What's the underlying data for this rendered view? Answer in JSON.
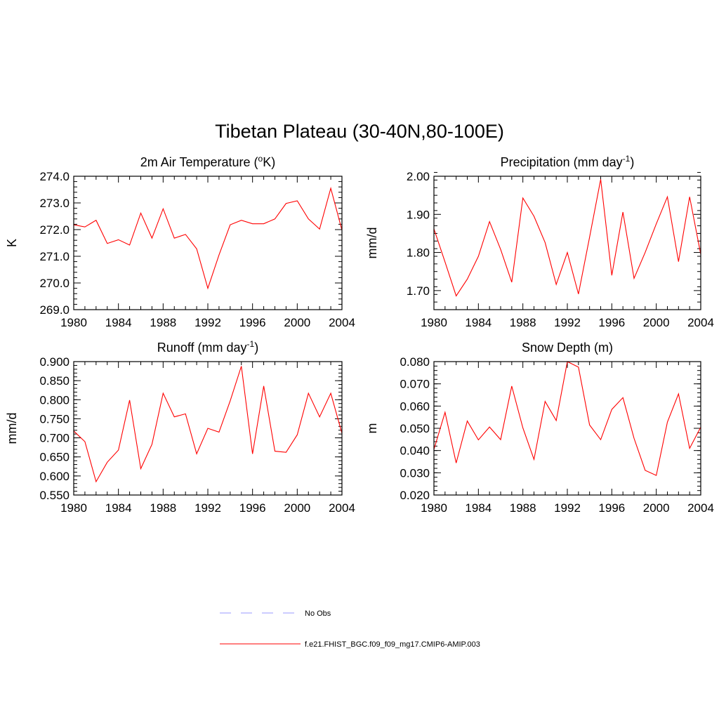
{
  "figure": {
    "title": "Tibetan Plateau (30-40N,80-100E)"
  },
  "chart_data": [
    {
      "type": "line",
      "title": "2m Air Temperature (",
      "title_sup": "o",
      "title_suffix": "K)",
      "ylabel": "K",
      "xlim": [
        1980,
        2004
      ],
      "ylim": [
        269.0,
        274.0
      ],
      "xticks": [
        1980,
        1984,
        1988,
        1992,
        1996,
        2000,
        2004
      ],
      "yticks": [
        "269.0",
        "270.0",
        "271.0",
        "272.0",
        "273.0",
        "274.0"
      ],
      "ytick_values": [
        269.0,
        270.0,
        271.0,
        272.0,
        273.0,
        274.0
      ],
      "yminor": 0.2,
      "series": [
        {
          "name": "f.e21.FHIST_BGC.f09_f09_mg17.CMIP6-AMIP.003",
          "color": "#ff0000",
          "x": [
            1980,
            1981,
            1982,
            1983,
            1984,
            1985,
            1986,
            1987,
            1988,
            1989,
            1990,
            1991,
            1992,
            1993,
            1994,
            1995,
            1996,
            1997,
            1998,
            1999,
            2000,
            2001,
            2002,
            2003,
            2004
          ],
          "y": [
            272.18,
            272.1,
            272.35,
            271.48,
            271.62,
            271.42,
            272.62,
            271.68,
            272.78,
            271.68,
            271.82,
            271.28,
            269.8,
            271.05,
            272.18,
            272.35,
            272.22,
            272.22,
            272.4,
            272.98,
            273.08,
            272.4,
            272.02,
            273.55,
            271.98
          ]
        }
      ]
    },
    {
      "type": "line",
      "title": "Precipitation (mm day",
      "title_sup": "-1",
      "title_suffix": ")",
      "ylabel": "mm/d",
      "xlim": [
        1980,
        2004
      ],
      "ylim": [
        1.65,
        2.0
      ],
      "xticks": [
        1980,
        1984,
        1988,
        1992,
        1996,
        2000,
        2004
      ],
      "yticks": [
        "1.70",
        "1.80",
        "1.90",
        "2.00"
      ],
      "ytick_values": [
        1.7,
        1.8,
        1.9,
        2.0
      ],
      "yminor": 0.02,
      "series": [
        {
          "name": "f.e21.FHIST_BGC.f09_f09_mg17.CMIP6-AMIP.003",
          "color": "#ff0000",
          "x": [
            1980,
            1981,
            1982,
            1983,
            1984,
            1985,
            1986,
            1987,
            1988,
            1989,
            1990,
            1991,
            1992,
            1993,
            1994,
            1995,
            1996,
            1997,
            1998,
            1999,
            2000,
            2001,
            2002,
            2003,
            2004
          ],
          "y": [
            1.862,
            1.775,
            1.686,
            1.73,
            1.79,
            1.881,
            1.808,
            1.722,
            1.943,
            1.895,
            1.826,
            1.716,
            1.8,
            1.691,
            1.84,
            1.992,
            1.74,
            1.906,
            1.732,
            1.8,
            1.875,
            1.946,
            1.776,
            1.946,
            1.795
          ]
        }
      ]
    },
    {
      "type": "line",
      "title": "Runoff (mm day",
      "title_sup": "-1",
      "title_suffix": ")",
      "ylabel": "mm/d",
      "xlim": [
        1980,
        2004
      ],
      "ylim": [
        0.55,
        0.9
      ],
      "xticks": [
        1980,
        1984,
        1988,
        1992,
        1996,
        2000,
        2004
      ],
      "yticks": [
        "0.550",
        "0.600",
        "0.650",
        "0.700",
        "0.750",
        "0.800",
        "0.850",
        "0.900"
      ],
      "ytick_values": [
        0.55,
        0.6,
        0.65,
        0.7,
        0.75,
        0.8,
        0.85,
        0.9
      ],
      "yminor": 0.01,
      "series": [
        {
          "name": "f.e21.FHIST_BGC.f09_f09_mg17.CMIP6-AMIP.003",
          "color": "#ff0000",
          "x": [
            1980,
            1981,
            1982,
            1983,
            1984,
            1985,
            1986,
            1987,
            1988,
            1989,
            1990,
            1991,
            1992,
            1993,
            1994,
            1995,
            1996,
            1997,
            1998,
            1999,
            2000,
            2001,
            2002,
            2003,
            2004
          ],
          "y": [
            0.718,
            0.69,
            0.585,
            0.636,
            0.668,
            0.799,
            0.619,
            0.683,
            0.817,
            0.755,
            0.763,
            0.658,
            0.725,
            0.715,
            0.797,
            0.888,
            0.658,
            0.836,
            0.665,
            0.662,
            0.708,
            0.817,
            0.755,
            0.817,
            0.712
          ]
        }
      ]
    },
    {
      "type": "line",
      "title": "Snow Depth (m)",
      "title_sup": "",
      "title_suffix": "",
      "ylabel": "m",
      "xlim": [
        1980,
        2004
      ],
      "ylim": [
        0.02,
        0.08
      ],
      "xticks": [
        1980,
        1984,
        1988,
        1992,
        1996,
        2000,
        2004
      ],
      "yticks": [
        "0.020",
        "0.030",
        "0.040",
        "0.050",
        "0.060",
        "0.070",
        "0.080"
      ],
      "ytick_values": [
        0.02,
        0.03,
        0.04,
        0.05,
        0.06,
        0.07,
        0.08
      ],
      "yminor": 0.002,
      "series": [
        {
          "name": "f.e21.FHIST_BGC.f09_f09_mg17.CMIP6-AMIP.003",
          "color": "#ff0000",
          "x": [
            1980,
            1981,
            1982,
            1983,
            1984,
            1985,
            1986,
            1987,
            1988,
            1989,
            1990,
            1991,
            1992,
            1993,
            1994,
            1995,
            1996,
            1997,
            1998,
            1999,
            2000,
            2001,
            2002,
            2003,
            2004
          ],
          "y": [
            0.0405,
            0.0572,
            0.0344,
            0.0533,
            0.0448,
            0.0506,
            0.0449,
            0.069,
            0.0502,
            0.036,
            0.0621,
            0.0535,
            0.08,
            0.0775,
            0.0515,
            0.0449,
            0.0585,
            0.0638,
            0.0455,
            0.0311,
            0.0288,
            0.0528,
            0.0655,
            0.041,
            0.0505
          ]
        }
      ]
    }
  ],
  "legend": {
    "items": [
      {
        "label": "No Obs",
        "color": "#9999ff",
        "style": "dashed"
      },
      {
        "label": "f.e21.FHIST_BGC.f09_f09_mg17.CMIP6-AMIP.003",
        "color": "#ff0000",
        "style": "solid"
      }
    ]
  }
}
